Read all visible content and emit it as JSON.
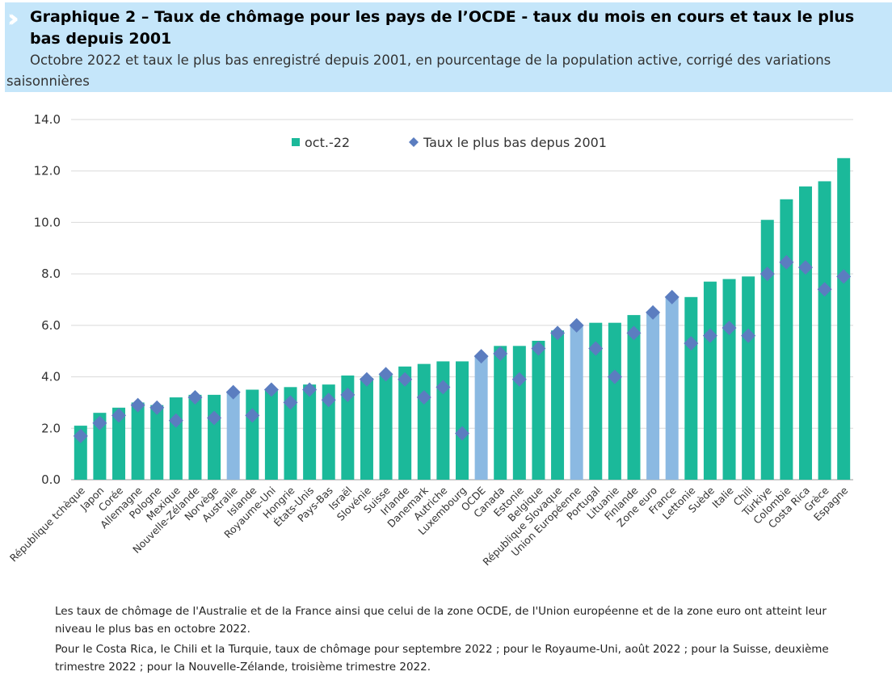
{
  "header": {
    "title": "Graphique 2 – Taux de chômage pour les pays de l’OCDE - taux du mois en cours et taux le plus bas depuis 2001",
    "subtitle": "Octobre 2022 et taux le plus bas enregistré depuis 2001, en pourcentage de la population active, corrigé des variations saisonnières",
    "chevron_icon": "double-chevron-right-icon",
    "background_color": "#c5e6fa"
  },
  "chart_data": {
    "type": "bar",
    "title": "",
    "xlabel": "",
    "ylabel": "",
    "ylim": [
      0,
      14
    ],
    "yticks": [
      "0.0",
      "2.0",
      "4.0",
      "6.0",
      "8.0",
      "10.0",
      "12.0",
      "14.0"
    ],
    "grid": true,
    "legend_position": "top",
    "colors": {
      "country": "#1bb99a",
      "aggregate": "#8bb9e2",
      "marker": "#5b7dc0"
    },
    "categories": [
      "République tchèque",
      "Japon",
      "Corée",
      "Allemagne",
      "Pologne",
      "Mexique",
      "Nouvelle-Zélande",
      "Norvège",
      "Australie",
      "Islande",
      "Royaume-Uni",
      "Hongrie",
      "États-Unis",
      "Pays-Bas",
      "Israël",
      "Slovénie",
      "Suisse",
      "Irlande",
      "Danemark",
      "Autriche",
      "Luxembourg",
      "OCDE",
      "Canada",
      "Estonie",
      "Belgique",
      "République Slovaque",
      "Union Européenne",
      "Portugal",
      "Lituanie",
      "Finlande",
      "Zone euro",
      "France",
      "Lettonie",
      "Suède",
      "Italie",
      "Chili",
      "Türkiye",
      "Colombie",
      "Costa Rica",
      "Grèce",
      "Espagne"
    ],
    "highlighted": [
      "Australie",
      "OCDE",
      "Union Européenne",
      "Zone euro",
      "France"
    ],
    "series": [
      {
        "name": "oct.-22",
        "kind": "bar",
        "values": [
          2.1,
          2.6,
          2.8,
          3.0,
          2.9,
          3.2,
          3.3,
          3.3,
          3.4,
          3.5,
          3.5,
          3.6,
          3.7,
          3.7,
          4.05,
          3.95,
          4.1,
          4.4,
          4.5,
          4.6,
          4.6,
          4.8,
          5.2,
          5.2,
          5.4,
          5.8,
          6.0,
          6.1,
          6.1,
          6.4,
          6.5,
          7.1,
          7.1,
          7.7,
          7.8,
          7.9,
          10.1,
          10.9,
          11.4,
          11.6,
          12.5
        ]
      },
      {
        "name": "Taux le plus bas depus 2001",
        "kind": "marker",
        "values": [
          1.7,
          2.2,
          2.5,
          2.9,
          2.8,
          2.3,
          3.2,
          2.4,
          3.4,
          2.5,
          3.5,
          3.0,
          3.5,
          3.1,
          3.3,
          3.9,
          4.1,
          3.9,
          3.2,
          3.6,
          1.8,
          4.8,
          4.9,
          3.9,
          5.1,
          5.7,
          6.0,
          5.1,
          4.0,
          5.7,
          6.5,
          7.1,
          5.3,
          5.6,
          5.9,
          5.6,
          8.0,
          8.45,
          8.25,
          7.4,
          7.9
        ]
      }
    ]
  },
  "notes": [
    "Les taux de chômage de l'Australie et de la France ainsi que celui de la zone OCDE, de l'Union européenne et de la zone euro ont atteint leur niveau le plus bas en octobre 2022.",
    "Pour le Costa Rica, le Chili et la Turquie, taux de chômage pour septembre 2022 ; pour le Royaume-Uni, août 2022 ; pour la Suisse, deuxième trimestre 2022 ; pour la Nouvelle-Zélande, troisième trimestre 2022."
  ]
}
